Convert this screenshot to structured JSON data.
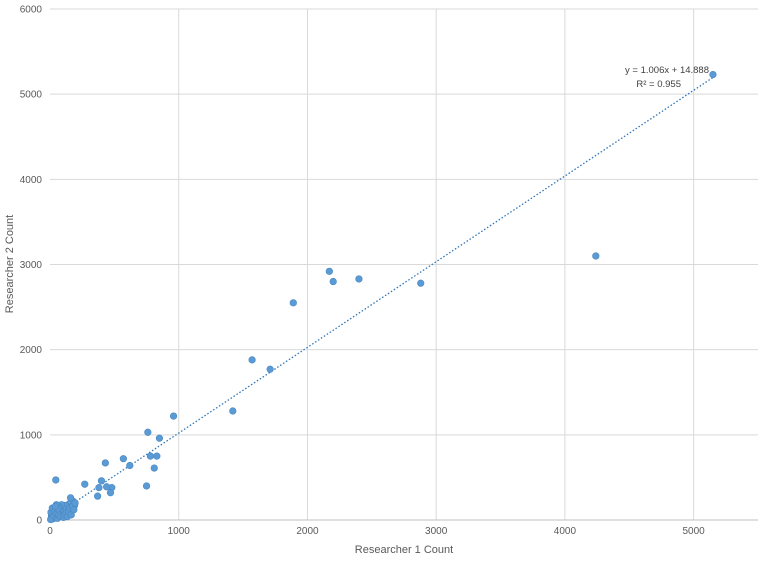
{
  "chart_data": {
    "type": "scatter",
    "title": "",
    "xlabel": "Researcher  1 Count",
    "ylabel": "Researcher  2 Count",
    "xlim": [
      0,
      5500
    ],
    "ylim": [
      0,
      6000
    ],
    "x_ticks": [
      0,
      1000,
      2000,
      3000,
      4000,
      5000
    ],
    "x_tick_labels": [
      "0",
      "1000",
      "2000",
      "3000",
      "4000",
      "5000"
    ],
    "y_ticks": [
      0,
      1000,
      2000,
      3000,
      4000,
      5000,
      6000
    ],
    "y_tick_labels": [
      "0",
      "1000",
      "2000",
      "3000",
      "4000",
      "5000",
      "6000"
    ],
    "grid": true,
    "legend": "none",
    "point_color": "#5b9bd5",
    "trendline": {
      "slope": 1.006,
      "intercept": 14.888,
      "equation_label": "y = 1.006x + 14.888",
      "r2_label": "R² = 0.955",
      "color": "#2e75b6",
      "x_range": [
        0,
        5150
      ]
    },
    "points": [
      [
        5150,
        5230
      ],
      [
        4240,
        3100
      ],
      [
        2880,
        2780
      ],
      [
        2400,
        2830
      ],
      [
        2200,
        2800
      ],
      [
        2170,
        2920
      ],
      [
        1890,
        2550
      ],
      [
        1710,
        1770
      ],
      [
        1570,
        1880
      ],
      [
        1420,
        1280
      ],
      [
        960,
        1220
      ],
      [
        850,
        960
      ],
      [
        830,
        750
      ],
      [
        810,
        610
      ],
      [
        780,
        750
      ],
      [
        760,
        1030
      ],
      [
        750,
        400
      ],
      [
        620,
        640
      ],
      [
        570,
        720
      ],
      [
        480,
        380
      ],
      [
        470,
        320
      ],
      [
        440,
        390
      ],
      [
        430,
        670
      ],
      [
        400,
        460
      ],
      [
        380,
        380
      ],
      [
        370,
        280
      ],
      [
        270,
        420
      ],
      [
        190,
        170
      ],
      [
        180,
        220
      ],
      [
        170,
        110
      ],
      [
        160,
        260
      ],
      [
        150,
        190
      ],
      [
        140,
        150
      ],
      [
        130,
        120
      ],
      [
        120,
        170
      ],
      [
        110,
        90
      ],
      [
        100,
        140
      ],
      [
        95,
        60
      ],
      [
        90,
        180
      ],
      [
        80,
        110
      ],
      [
        75,
        50
      ],
      [
        70,
        150
      ],
      [
        60,
        90
      ],
      [
        55,
        30
      ],
      [
        50,
        180
      ],
      [
        45,
        470
      ],
      [
        40,
        60
      ],
      [
        35,
        120
      ],
      [
        30,
        20
      ],
      [
        25,
        80
      ],
      [
        20,
        40
      ],
      [
        15,
        10
      ],
      [
        12,
        60
      ],
      [
        10,
        25
      ],
      [
        5,
        5
      ],
      [
        8,
        90
      ],
      [
        18,
        140
      ],
      [
        28,
        50
      ],
      [
        38,
        100
      ],
      [
        48,
        70
      ],
      [
        58,
        20
      ],
      [
        68,
        60
      ],
      [
        85,
        40
      ],
      [
        105,
        30
      ],
      [
        115,
        60
      ],
      [
        125,
        80
      ],
      [
        135,
        40
      ],
      [
        145,
        100
      ],
      [
        155,
        140
      ],
      [
        165,
        60
      ],
      [
        175,
        160
      ],
      [
        185,
        120
      ],
      [
        195,
        200
      ],
      [
        60,
        130
      ],
      [
        42,
        160
      ]
    ]
  }
}
